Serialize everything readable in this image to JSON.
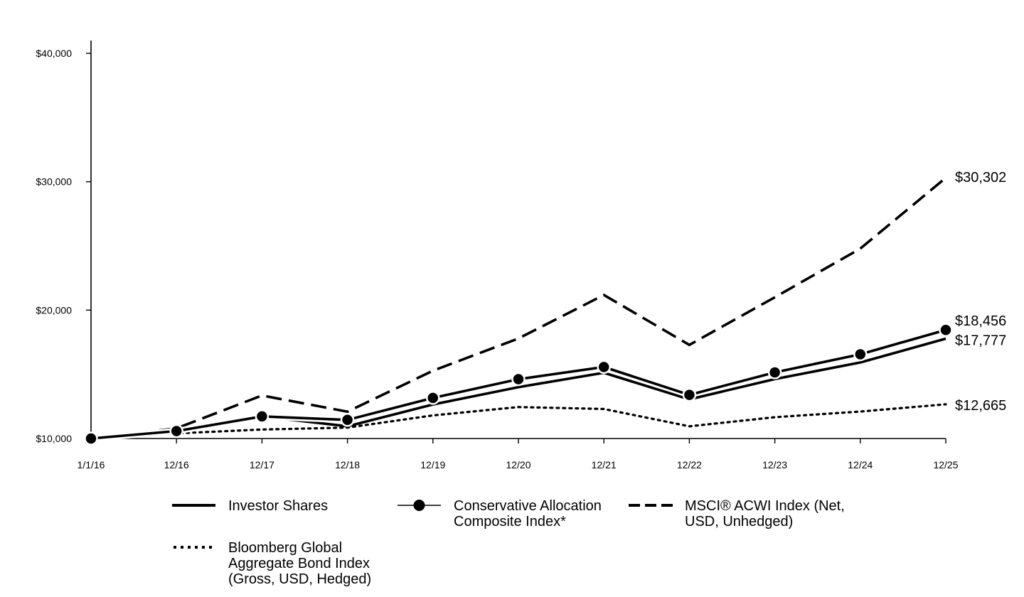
{
  "chart_data": {
    "type": "line",
    "categories": [
      "1/1/16",
      "12/16",
      "12/17",
      "12/18",
      "12/19",
      "12/20",
      "12/21",
      "12/22",
      "12/23",
      "12/24",
      "12/25"
    ],
    "ylim": [
      10000,
      40000
    ],
    "y_ticks": [
      {
        "value": 10000,
        "label": "$10,000"
      },
      {
        "value": 20000,
        "label": "$20,000"
      },
      {
        "value": 30000,
        "label": "$30,000"
      },
      {
        "value": 40000,
        "label": "$40,000"
      }
    ],
    "series": [
      {
        "id": "investor",
        "name": "Investor Shares",
        "style": "solid",
        "values": [
          10000,
          10560,
          11720,
          10950,
          12650,
          14000,
          15120,
          13050,
          14630,
          15920,
          17777
        ],
        "end_label": "$17,777"
      },
      {
        "id": "composite",
        "name": "Conservative Allocation Composite Index*",
        "legend_lines": [
          "Conservative Allocation",
          "Composite Index*"
        ],
        "style": "solid-markers",
        "values": [
          10000,
          10580,
          11720,
          11450,
          13160,
          14620,
          15570,
          13400,
          15150,
          16560,
          18456
        ],
        "end_label": "$18,456"
      },
      {
        "id": "msci",
        "name": "MSCI® ACWI Index (Net, USD, Unhedged)",
        "legend_lines": [
          "MSCI® ACWI Index (Net,",
          "USD, Unhedged)"
        ],
        "style": "dashed",
        "values": [
          10000,
          10790,
          13350,
          12090,
          15280,
          17790,
          21180,
          17290,
          21000,
          24790,
          30302
        ],
        "end_label": "$30,302"
      },
      {
        "id": "bloomberg",
        "name": "Bloomberg Global Aggregate Bond Index (Gross, USD, Hedged)",
        "legend_lines": [
          "Bloomberg Global",
          "Aggregate Bond Index",
          "(Gross, USD, Hedged)"
        ],
        "style": "dotted",
        "values": [
          10000,
          10400,
          10700,
          10850,
          11800,
          12450,
          12300,
          10950,
          11660,
          12100,
          12665
        ],
        "end_label": "$12,665"
      }
    ]
  }
}
